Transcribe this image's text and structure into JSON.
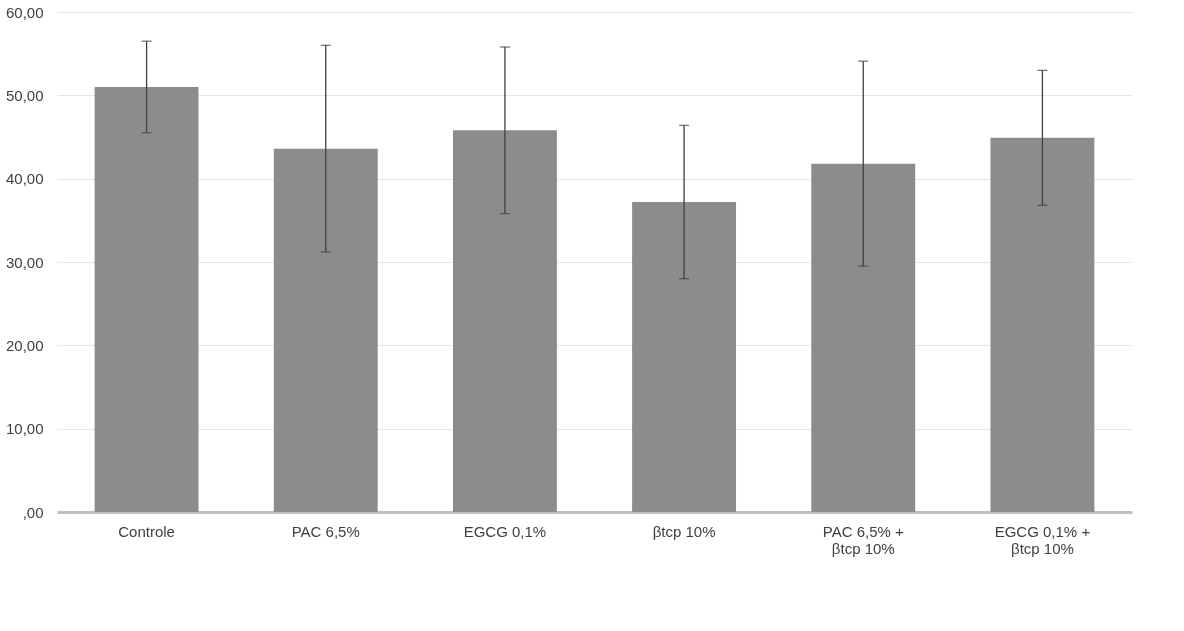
{
  "chart_data": {
    "type": "bar",
    "categories": [
      "Controle",
      "PAC 6,5%",
      "EGCG 0,1%",
      "βtcp 10%",
      "PAC 6,5% +\nβtcp 10%",
      "EGCG 0,1% +\nβtcp 10%"
    ],
    "values": [
      51.0,
      43.6,
      45.8,
      37.2,
      41.8,
      44.9
    ],
    "errors": [
      5.5,
      12.4,
      10.0,
      9.2,
      12.3,
      8.1
    ],
    "color": "#8c8c8c",
    "ylim": [
      0,
      60
    ],
    "yticks": [
      {
        "value": 0,
        "label": ",00"
      },
      {
        "value": 10,
        "label": "10,00"
      },
      {
        "value": 20,
        "label": "20,00"
      },
      {
        "value": 30,
        "label": "30,00"
      },
      {
        "value": 40,
        "label": "40,00"
      },
      {
        "value": 50,
        "label": "50,00"
      },
      {
        "value": 60,
        "label": "60,00"
      }
    ],
    "grid": "y"
  }
}
